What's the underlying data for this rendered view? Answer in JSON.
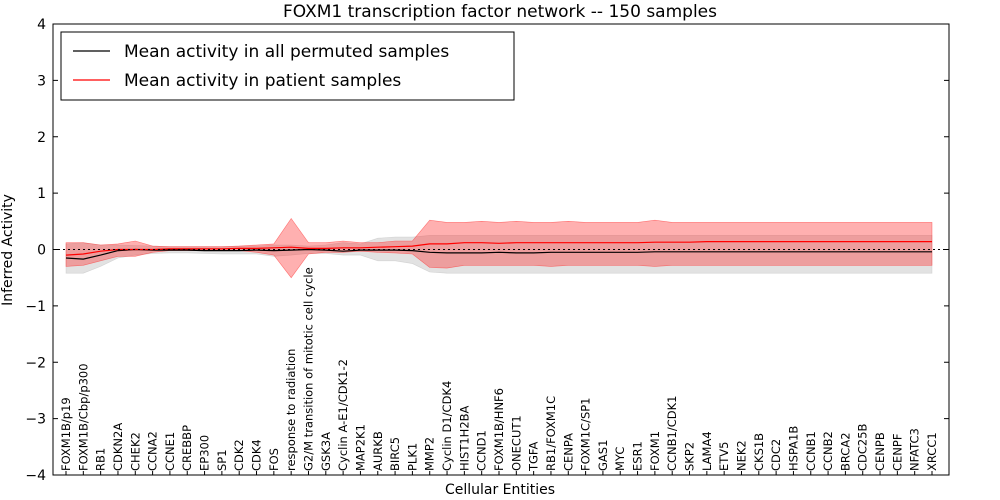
{
  "chart_data": {
    "type": "line",
    "title": "FOXM1 transcription factor network -- 150 samples",
    "xlabel": "Cellular Entities",
    "ylabel": "Inferred Activity",
    "ylim": [
      -4,
      4
    ],
    "yticks": [
      -4,
      -3,
      -2,
      -1,
      0,
      1,
      2,
      3,
      4
    ],
    "ytick_labels": [
      "−4",
      "−3",
      "−2",
      "−1",
      "0",
      "1",
      "2",
      "3",
      "4"
    ],
    "categories": [
      "FOXM1B/p19",
      "FOXM1B/Cbp/p300",
      "RB1",
      "CDKN2A",
      "CHEK2",
      "CCNA2",
      "CCNE1",
      "CREBBP",
      "EP300",
      "SP1",
      "CDK2",
      "CDK4",
      "FOS",
      "response to radiation",
      "G2/M transition of mitotic cell cycle",
      "GSK3A",
      "Cyclin A-E1/CDK1-2",
      "MAP2K1",
      "AURKB",
      "BIRC5",
      "PLK1",
      "MMP2",
      "Cyclin D1/CDK4",
      "HIST1H2BA",
      "CCND1",
      "FOXM1B/HNF6",
      "ONECUT1",
      "TGFA",
      "RB1/FOXM1C",
      "CENPA",
      "FOXM1C/SP1",
      "GAS1",
      "MYC",
      "ESR1",
      "FOXM1",
      "CCNB1/CDK1",
      "SKP2",
      "LAMA4",
      "ETV5",
      "NEK2",
      "CKS1B",
      "CDC2",
      "HSPA1B",
      "CCNB1",
      "CCNB2",
      "BRCA2",
      "CDC25B",
      "CENPB",
      "CENPF",
      "NFATC3",
      "XRCC1"
    ],
    "series": [
      {
        "name": "Mean activity in all permuted samples",
        "color": "#000000",
        "values": [
          -0.15,
          -0.17,
          -0.1,
          -0.02,
          0.0,
          -0.01,
          -0.01,
          -0.01,
          -0.02,
          -0.02,
          -0.02,
          -0.01,
          -0.02,
          -0.01,
          0.0,
          -0.01,
          -0.03,
          -0.01,
          -0.01,
          -0.01,
          -0.02,
          -0.05,
          -0.06,
          -0.06,
          -0.06,
          -0.05,
          -0.06,
          -0.06,
          -0.05,
          -0.05,
          -0.05,
          -0.05,
          -0.05,
          -0.05,
          -0.04,
          -0.04,
          -0.04,
          -0.04,
          -0.04,
          -0.04,
          -0.04,
          -0.04,
          -0.04,
          -0.04,
          -0.04,
          -0.04,
          -0.04,
          -0.04,
          -0.04,
          -0.04,
          -0.04
        ],
        "band_low": [
          -0.42,
          -0.42,
          -0.3,
          -0.15,
          -0.1,
          -0.07,
          -0.06,
          -0.06,
          -0.07,
          -0.08,
          -0.08,
          -0.08,
          -0.12,
          -0.1,
          -0.07,
          -0.07,
          -0.1,
          -0.1,
          -0.2,
          -0.2,
          -0.25,
          -0.4,
          -0.42,
          -0.42,
          -0.42,
          -0.42,
          -0.42,
          -0.42,
          -0.42,
          -0.42,
          -0.42,
          -0.42,
          -0.42,
          -0.42,
          -0.42,
          -0.42,
          -0.42,
          -0.42,
          -0.42,
          -0.42,
          -0.42,
          -0.42,
          -0.42,
          -0.42,
          -0.42,
          -0.42,
          -0.42,
          -0.42,
          -0.42,
          -0.42,
          -0.42
        ],
        "band_high": [
          0.1,
          0.12,
          0.08,
          0.08,
          0.07,
          0.06,
          0.05,
          0.05,
          0.05,
          0.05,
          0.06,
          0.06,
          0.08,
          0.08,
          0.06,
          0.08,
          0.12,
          0.1,
          0.2,
          0.22,
          0.22,
          0.25,
          0.25,
          0.25,
          0.25,
          0.25,
          0.25,
          0.25,
          0.25,
          0.25,
          0.25,
          0.25,
          0.25,
          0.25,
          0.25,
          0.25,
          0.25,
          0.25,
          0.25,
          0.25,
          0.25,
          0.25,
          0.25,
          0.25,
          0.25,
          0.25,
          0.25,
          0.25,
          0.25,
          0.25,
          0.25
        ]
      },
      {
        "name": "Mean activity in patient samples",
        "color": "#ff0000",
        "values": [
          -0.1,
          -0.08,
          -0.03,
          0.0,
          0.0,
          0.0,
          0.01,
          0.01,
          0.01,
          0.01,
          0.02,
          0.02,
          0.03,
          0.04,
          0.02,
          0.02,
          0.03,
          0.03,
          0.04,
          0.05,
          0.06,
          0.1,
          0.1,
          0.12,
          0.12,
          0.11,
          0.12,
          0.12,
          0.12,
          0.12,
          0.12,
          0.12,
          0.12,
          0.12,
          0.13,
          0.13,
          0.13,
          0.14,
          0.14,
          0.14,
          0.14,
          0.14,
          0.14,
          0.14,
          0.14,
          0.14,
          0.14,
          0.14,
          0.14,
          0.14,
          0.14
        ],
        "band_low": [
          -0.3,
          -0.28,
          -0.2,
          -0.12,
          -0.12,
          -0.05,
          -0.02,
          -0.02,
          -0.02,
          -0.02,
          -0.02,
          -0.05,
          -0.1,
          -0.5,
          -0.08,
          -0.05,
          -0.05,
          -0.03,
          -0.05,
          -0.06,
          -0.08,
          -0.32,
          -0.33,
          -0.28,
          -0.28,
          -0.28,
          -0.28,
          -0.28,
          -0.3,
          -0.28,
          -0.28,
          -0.28,
          -0.28,
          -0.28,
          -0.3,
          -0.28,
          -0.28,
          -0.28,
          -0.28,
          -0.28,
          -0.28,
          -0.28,
          -0.28,
          -0.28,
          -0.28,
          -0.28,
          -0.28,
          -0.28,
          -0.28,
          -0.28,
          -0.28
        ],
        "band_high": [
          0.12,
          0.12,
          0.08,
          0.1,
          0.15,
          0.06,
          0.05,
          0.05,
          0.05,
          0.05,
          0.06,
          0.08,
          0.1,
          0.55,
          0.12,
          0.12,
          0.15,
          0.12,
          0.12,
          0.15,
          0.15,
          0.52,
          0.48,
          0.48,
          0.5,
          0.48,
          0.5,
          0.48,
          0.48,
          0.5,
          0.48,
          0.48,
          0.48,
          0.48,
          0.52,
          0.48,
          0.48,
          0.48,
          0.48,
          0.48,
          0.48,
          0.48,
          0.48,
          0.48,
          0.48,
          0.48,
          0.48,
          0.48,
          0.48,
          0.48,
          0.48
        ]
      }
    ],
    "reference_line": 0,
    "legend_position": "top-left"
  },
  "legend": {
    "items": [
      {
        "label": "Mean activity in all permuted samples",
        "color": "#000000"
      },
      {
        "label": "Mean activity in patient samples",
        "color": "#ff0000"
      }
    ]
  }
}
